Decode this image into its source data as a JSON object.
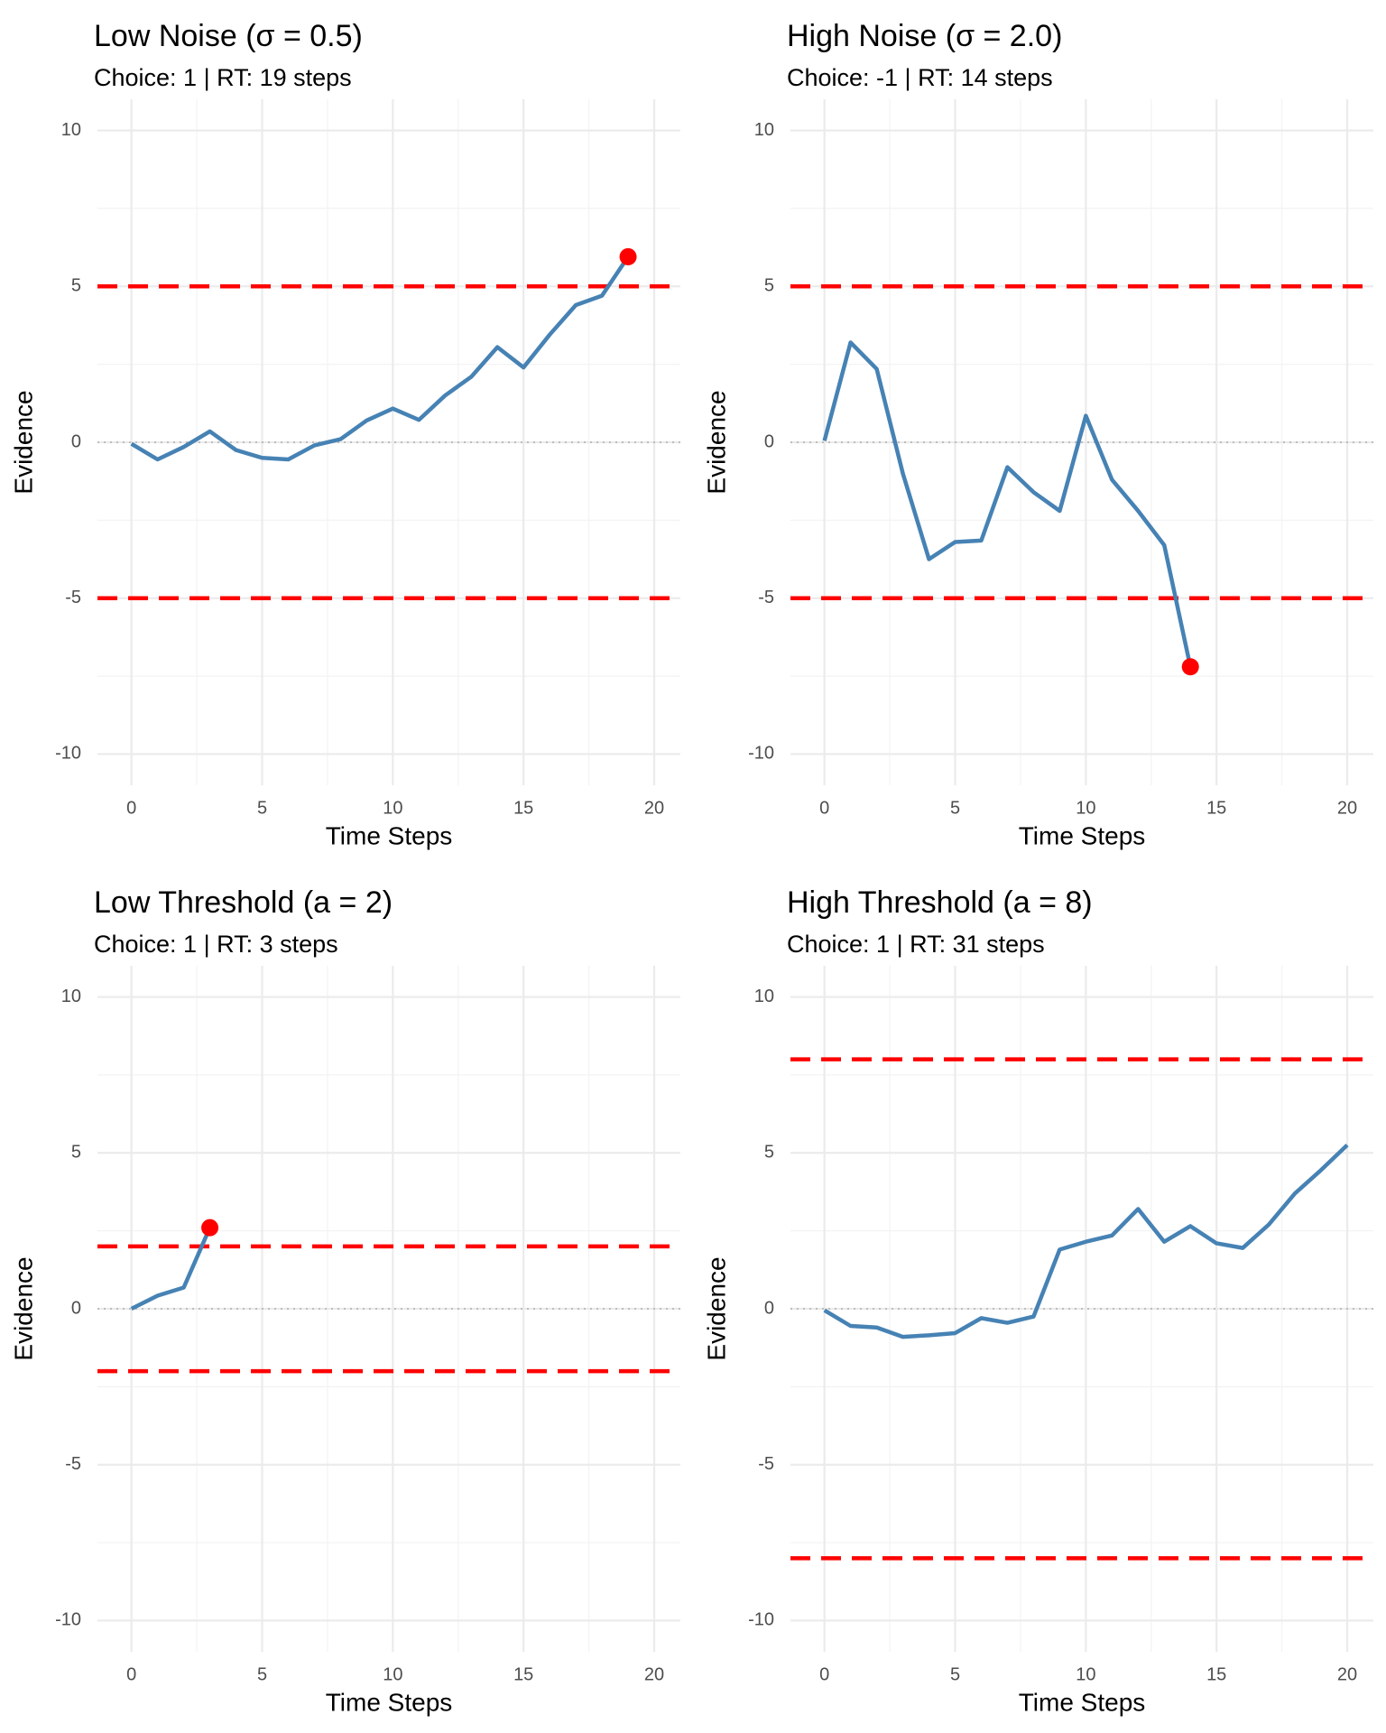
{
  "colors": {
    "path": "#4682b4",
    "boundary": "#ff0000",
    "endpoint": "#ff0000",
    "zero_line": "#bdbdbd"
  },
  "chart_data": [
    {
      "type": "line",
      "title": "Low Noise (σ = 0.5)",
      "subtitle": "Choice: 1 | RT: 19 steps",
      "xlabel": "Time Steps",
      "ylabel": "Evidence",
      "xlim": [
        -1.3,
        21
      ],
      "ylim": [
        -11,
        11
      ],
      "xticks": [
        0,
        5,
        10,
        15,
        20
      ],
      "yticks": [
        -10,
        -5,
        0,
        5,
        10
      ],
      "boundaries": [
        5,
        -5
      ],
      "x": [
        0,
        1,
        2,
        3,
        4,
        5,
        6,
        7,
        8,
        9,
        10,
        11,
        12,
        13,
        14,
        15,
        16,
        17,
        18,
        19
      ],
      "y": [
        -0.05,
        -0.55,
        -0.15,
        0.35,
        -0.25,
        -0.5,
        -0.55,
        -0.1,
        0.1,
        0.7,
        1.08,
        0.72,
        1.5,
        2.1,
        3.05,
        2.4,
        3.45,
        4.4,
        4.7,
        5.95
      ],
      "endpoint": [
        19,
        5.95
      ]
    },
    {
      "type": "line",
      "title": "High Noise (σ = 2.0)",
      "subtitle": "Choice: -1 | RT: 14 steps",
      "xlabel": "Time Steps",
      "ylabel": "Evidence",
      "xlim": [
        -1.3,
        21
      ],
      "ylim": [
        -11,
        11
      ],
      "xticks": [
        0,
        5,
        10,
        15,
        20
      ],
      "yticks": [
        -10,
        -5,
        0,
        5,
        10
      ],
      "boundaries": [
        5,
        -5
      ],
      "x": [
        0,
        1,
        2,
        3,
        4,
        5,
        6,
        7,
        8,
        9,
        10,
        11,
        12,
        13,
        14
      ],
      "y": [
        0.05,
        3.2,
        2.35,
        -1.0,
        -3.75,
        -3.2,
        -3.15,
        -0.8,
        -1.6,
        -2.2,
        0.85,
        -1.2,
        -2.2,
        -3.3,
        -7.2
      ],
      "endpoint": [
        14,
        -7.2
      ]
    },
    {
      "type": "line",
      "title": "Low Threshold (a = 2)",
      "subtitle": "Choice: 1 | RT: 3 steps",
      "xlabel": "Time Steps",
      "ylabel": "Evidence",
      "xlim": [
        -1.3,
        21
      ],
      "ylim": [
        -11,
        11
      ],
      "xticks": [
        0,
        5,
        10,
        15,
        20
      ],
      "yticks": [
        -10,
        -5,
        0,
        5,
        10
      ],
      "boundaries": [
        2,
        -2
      ],
      "x": [
        0,
        1,
        2,
        3
      ],
      "y": [
        0.0,
        0.42,
        0.68,
        2.6
      ],
      "endpoint": [
        3,
        2.6
      ]
    },
    {
      "type": "line",
      "title": "High Threshold (a = 8)",
      "subtitle": "Choice: 1 | RT: 31 steps",
      "xlabel": "Time Steps",
      "ylabel": "Evidence",
      "xlim": [
        -1.3,
        21
      ],
      "ylim": [
        -11,
        11
      ],
      "xticks": [
        0,
        5,
        10,
        15,
        20
      ],
      "yticks": [
        -10,
        -5,
        0,
        5,
        10
      ],
      "boundaries": [
        8,
        -8
      ],
      "x": [
        0,
        1,
        2,
        3,
        4,
        5,
        6,
        7,
        8,
        9,
        10,
        11,
        12,
        13,
        14,
        15,
        16,
        17,
        18,
        19,
        20
      ],
      "y": [
        -0.05,
        -0.55,
        -0.6,
        -0.9,
        -0.85,
        -0.78,
        -0.3,
        -0.45,
        -0.25,
        1.9,
        2.15,
        2.35,
        3.2,
        2.15,
        2.65,
        2.1,
        1.95,
        2.7,
        3.7,
        4.45,
        5.25
      ],
      "endpoint": null
    }
  ]
}
